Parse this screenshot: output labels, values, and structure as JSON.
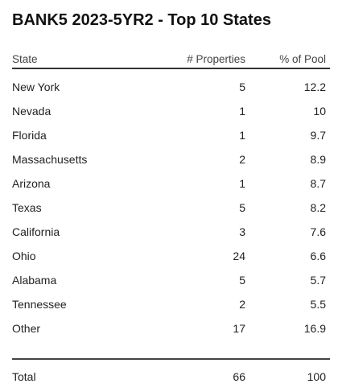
{
  "chart_data": {
    "type": "table",
    "title": "BANK5 2023-5YR2 - Top 10 States",
    "columns": [
      "State",
      "# Properties",
      "% of Pool"
    ],
    "rows": [
      {
        "state": "New York",
        "properties": "5",
        "pct": "12.2"
      },
      {
        "state": "Nevada",
        "properties": "1",
        "pct": "10"
      },
      {
        "state": "Florida",
        "properties": "1",
        "pct": "9.7"
      },
      {
        "state": "Massachusetts",
        "properties": "2",
        "pct": "8.9"
      },
      {
        "state": "Arizona",
        "properties": "1",
        "pct": "8.7"
      },
      {
        "state": "Texas",
        "properties": "5",
        "pct": "8.2"
      },
      {
        "state": "California",
        "properties": "3",
        "pct": "7.6"
      },
      {
        "state": "Ohio",
        "properties": "24",
        "pct": "6.6"
      },
      {
        "state": "Alabama",
        "properties": "5",
        "pct": "5.7"
      },
      {
        "state": "Tennessee",
        "properties": "2",
        "pct": "5.5"
      },
      {
        "state": "Other",
        "properties": "17",
        "pct": "16.9"
      }
    ],
    "total": {
      "state": "Total",
      "properties": "66",
      "pct": "100"
    }
  }
}
